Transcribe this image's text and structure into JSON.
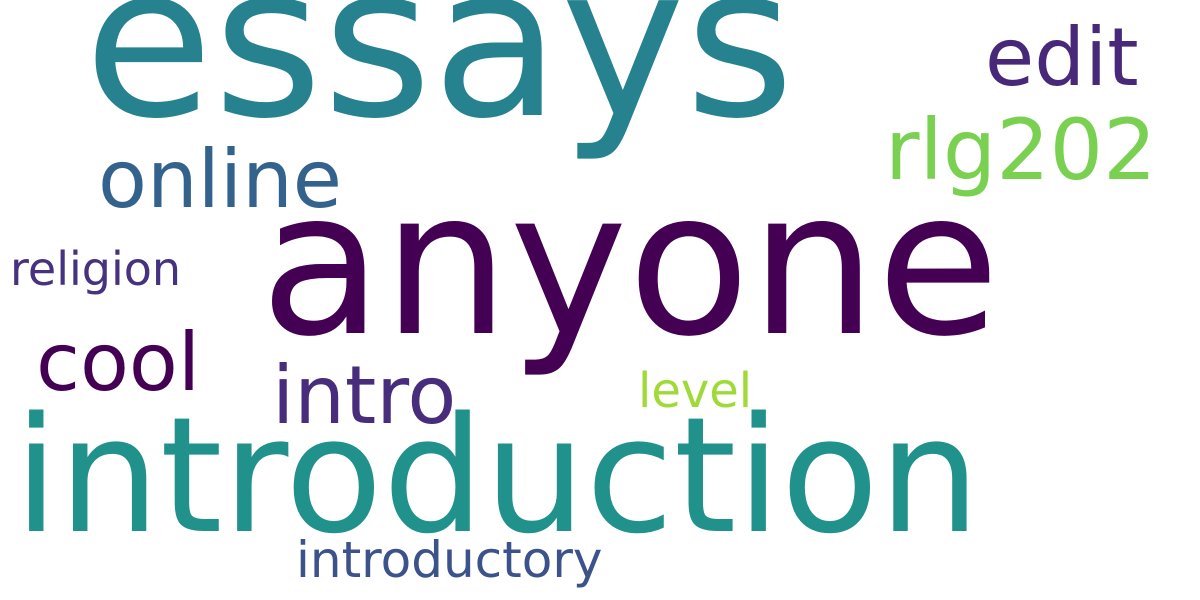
{
  "background": "#ffffff",
  "words": [
    {
      "id": "essays",
      "text": "essays",
      "color": "#26828e"
    },
    {
      "id": "anyone",
      "text": "anyone",
      "color": "#440154"
    },
    {
      "id": "introduction",
      "text": "introduction",
      "color": "#21918c"
    },
    {
      "id": "edit",
      "text": "edit",
      "color": "#482878"
    },
    {
      "id": "rlg202",
      "text": "rlg202",
      "color": "#7ad151"
    },
    {
      "id": "online",
      "text": "online",
      "color": "#33638d"
    },
    {
      "id": "religion",
      "text": "religion",
      "color": "#46327e"
    },
    {
      "id": "cool",
      "text": "cool",
      "color": "#440154"
    },
    {
      "id": "intro",
      "text": "intro",
      "color": "#472d7b"
    },
    {
      "id": "level",
      "text": "level",
      "color": "#a0da39"
    },
    {
      "id": "introductory",
      "text": "introductory",
      "color": "#3b528b"
    }
  ]
}
